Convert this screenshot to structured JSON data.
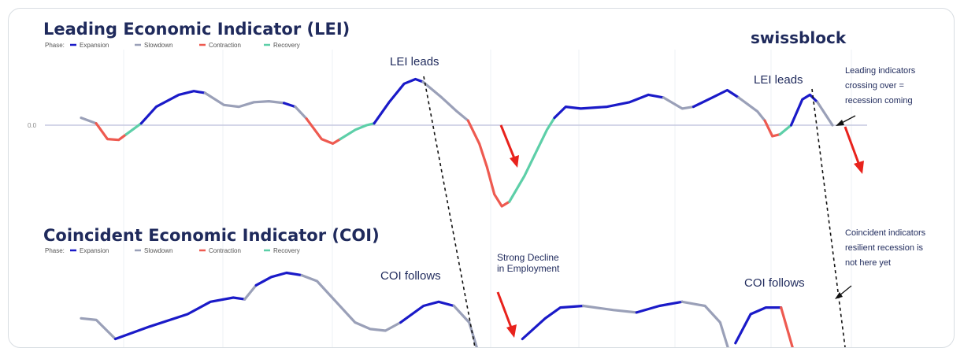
{
  "brand": "swissblock",
  "colors": {
    "Expansion": "#1a1ac8",
    "Slowdown": "#9aa0b8",
    "Contraction": "#ee5a50",
    "Recovery": "#5dcfa8",
    "arrow": "#e8221c",
    "title": "#1f2a5c",
    "grid": "#eef0f4",
    "zeroline": "#c5c9e0"
  },
  "chart_data": [
    {
      "type": "line",
      "title": "Leading Economic Indicator (LEI)",
      "legend_label": "Phase:",
      "legend": [
        "Expansion",
        "Slowdown",
        "Contraction",
        "Recovery"
      ],
      "ytick": "0.0",
      "grid": true,
      "segments": [
        {
          "phase": "Slowdown",
          "points": [
            [
              0.0,
              0.08
            ],
            [
              0.02,
              0.02
            ]
          ]
        },
        {
          "phase": "Contraction",
          "points": [
            [
              0.02,
              0.02
            ],
            [
              0.035,
              -0.15
            ],
            [
              0.05,
              -0.16
            ],
            [
              0.06,
              -0.1
            ]
          ]
        },
        {
          "phase": "Recovery",
          "points": [
            [
              0.06,
              -0.1
            ],
            [
              0.08,
              0.02
            ]
          ]
        },
        {
          "phase": "Expansion",
          "points": [
            [
              0.08,
              0.02
            ],
            [
              0.1,
              0.2
            ],
            [
              0.13,
              0.33
            ],
            [
              0.15,
              0.37
            ],
            [
              0.165,
              0.35
            ]
          ]
        },
        {
          "phase": "Slowdown",
          "points": [
            [
              0.165,
              0.35
            ],
            [
              0.19,
              0.22
            ],
            [
              0.21,
              0.2
            ],
            [
              0.23,
              0.25
            ],
            [
              0.25,
              0.26
            ],
            [
              0.27,
              0.24
            ]
          ]
        },
        {
          "phase": "Expansion",
          "points": [
            [
              0.27,
              0.24
            ],
            [
              0.285,
              0.2
            ]
          ]
        },
        {
          "phase": "Slowdown",
          "points": [
            [
              0.285,
              0.2
            ],
            [
              0.3,
              0.07
            ]
          ]
        },
        {
          "phase": "Contraction",
          "points": [
            [
              0.3,
              0.07
            ],
            [
              0.32,
              -0.15
            ],
            [
              0.335,
              -0.2
            ],
            [
              0.345,
              -0.15
            ]
          ]
        },
        {
          "phase": "Recovery",
          "points": [
            [
              0.345,
              -0.15
            ],
            [
              0.365,
              -0.05
            ],
            [
              0.38,
              0.0
            ],
            [
              0.39,
              0.02
            ]
          ]
        },
        {
          "phase": "Expansion",
          "points": [
            [
              0.39,
              0.02
            ],
            [
              0.41,
              0.25
            ],
            [
              0.43,
              0.45
            ],
            [
              0.445,
              0.5
            ],
            [
              0.455,
              0.47
            ]
          ]
        },
        {
          "phase": "Slowdown",
          "points": [
            [
              0.455,
              0.47
            ],
            [
              0.48,
              0.3
            ],
            [
              0.5,
              0.15
            ],
            [
              0.515,
              0.05
            ]
          ]
        },
        {
          "phase": "Contraction",
          "points": [
            [
              0.515,
              0.05
            ],
            [
              0.53,
              -0.2
            ],
            [
              0.54,
              -0.45
            ],
            [
              0.55,
              -0.75
            ],
            [
              0.56,
              -0.88
            ],
            [
              0.57,
              -0.83
            ]
          ]
        },
        {
          "phase": "Recovery",
          "points": [
            [
              0.57,
              -0.83
            ],
            [
              0.59,
              -0.55
            ],
            [
              0.605,
              -0.3
            ],
            [
              0.62,
              -0.05
            ],
            [
              0.63,
              0.08
            ]
          ]
        },
        {
          "phase": "Expansion",
          "points": [
            [
              0.63,
              0.08
            ],
            [
              0.645,
              0.2
            ],
            [
              0.665,
              0.18
            ],
            [
              0.7,
              0.2
            ],
            [
              0.73,
              0.25
            ],
            [
              0.755,
              0.33
            ],
            [
              0.775,
              0.3
            ]
          ]
        },
        {
          "phase": "Slowdown",
          "points": [
            [
              0.775,
              0.3
            ],
            [
              0.8,
              0.18
            ],
            [
              0.815,
              0.2
            ]
          ]
        },
        {
          "phase": "Expansion",
          "points": [
            [
              0.815,
              0.2
            ],
            [
              0.84,
              0.3
            ],
            [
              0.86,
              0.38
            ],
            [
              0.875,
              0.3
            ]
          ]
        },
        {
          "phase": "Slowdown",
          "points": [
            [
              0.875,
              0.3
            ],
            [
              0.9,
              0.15
            ],
            [
              0.91,
              0.05
            ]
          ]
        },
        {
          "phase": "Contraction",
          "points": [
            [
              0.91,
              0.05
            ],
            [
              0.92,
              -0.12
            ],
            [
              0.93,
              -0.1
            ]
          ]
        },
        {
          "phase": "Recovery",
          "points": [
            [
              0.93,
              -0.1
            ],
            [
              0.945,
              0.0
            ]
          ]
        },
        {
          "phase": "Expansion",
          "points": [
            [
              0.945,
              0.0
            ],
            [
              0.96,
              0.28
            ],
            [
              0.97,
              0.33
            ],
            [
              0.98,
              0.25
            ]
          ]
        },
        {
          "phase": "Slowdown",
          "points": [
            [
              0.98,
              0.25
            ],
            [
              1.0,
              0.0
            ]
          ]
        }
      ]
    },
    {
      "type": "line",
      "title": "Coincident Economic Indicator (COI)",
      "legend_label": "Phase:",
      "legend": [
        "Expansion",
        "Slowdown",
        "Contraction",
        "Recovery"
      ],
      "grid": true,
      "segments": [
        {
          "phase": "Slowdown",
          "points": [
            [
              0.0,
              0.35
            ],
            [
              0.02,
              0.33
            ],
            [
              0.045,
              0.1
            ]
          ]
        },
        {
          "phase": "Expansion",
          "points": [
            [
              0.045,
              0.1
            ],
            [
              0.09,
              0.25
            ],
            [
              0.14,
              0.4
            ],
            [
              0.17,
              0.55
            ],
            [
              0.2,
              0.6
            ],
            [
              0.215,
              0.58
            ]
          ]
        },
        {
          "phase": "Slowdown",
          "points": [
            [
              0.215,
              0.58
            ],
            [
              0.23,
              0.75
            ]
          ]
        },
        {
          "phase": "Expansion",
          "points": [
            [
              0.23,
              0.75
            ],
            [
              0.25,
              0.85
            ],
            [
              0.27,
              0.9
            ],
            [
              0.29,
              0.87
            ]
          ]
        },
        {
          "phase": "Slowdown",
          "points": [
            [
              0.29,
              0.87
            ],
            [
              0.31,
              0.8
            ],
            [
              0.33,
              0.6
            ],
            [
              0.36,
              0.3
            ],
            [
              0.38,
              0.22
            ],
            [
              0.4,
              0.2
            ],
            [
              0.42,
              0.3
            ]
          ]
        },
        {
          "phase": "Expansion",
          "points": [
            [
              0.42,
              0.3
            ],
            [
              0.45,
              0.5
            ],
            [
              0.47,
              0.55
            ],
            [
              0.49,
              0.5
            ]
          ]
        },
        {
          "phase": "Slowdown",
          "points": [
            [
              0.49,
              0.5
            ],
            [
              0.51,
              0.3
            ],
            [
              0.52,
              0.0
            ]
          ]
        },
        {
          "phase": "Expansion",
          "points": [
            [
              0.58,
              0.1
            ],
            [
              0.61,
              0.35
            ],
            [
              0.63,
              0.48
            ],
            [
              0.66,
              0.5
            ]
          ]
        },
        {
          "phase": "Slowdown",
          "points": [
            [
              0.66,
              0.5
            ],
            [
              0.7,
              0.45
            ],
            [
              0.73,
              0.42
            ]
          ]
        },
        {
          "phase": "Expansion",
          "points": [
            [
              0.73,
              0.42
            ],
            [
              0.76,
              0.5
            ],
            [
              0.79,
              0.55
            ]
          ]
        },
        {
          "phase": "Slowdown",
          "points": [
            [
              0.79,
              0.55
            ],
            [
              0.82,
              0.5
            ],
            [
              0.84,
              0.3
            ],
            [
              0.85,
              0.0
            ]
          ]
        },
        {
          "phase": "Expansion",
          "points": [
            [
              0.86,
              0.05
            ],
            [
              0.88,
              0.4
            ],
            [
              0.9,
              0.48
            ],
            [
              0.92,
              0.48
            ]
          ]
        },
        {
          "phase": "Contraction",
          "points": [
            [
              0.92,
              0.48
            ],
            [
              0.935,
              0.0
            ]
          ]
        }
      ]
    }
  ],
  "annotations": {
    "lei_leads_1": "LEI leads",
    "lei_leads_2": "LEI leads",
    "leading_crossing": [
      "Leading indicators",
      "crossing over =",
      "recession coming"
    ],
    "coi_follows_1": "COI follows",
    "coi_follows_2": "COI follows",
    "strong_decline": [
      "Strong Decline",
      "in Employment"
    ],
    "coincident_resilient": [
      "Coincident indicators",
      "resilient recession is",
      "not here yet"
    ]
  }
}
